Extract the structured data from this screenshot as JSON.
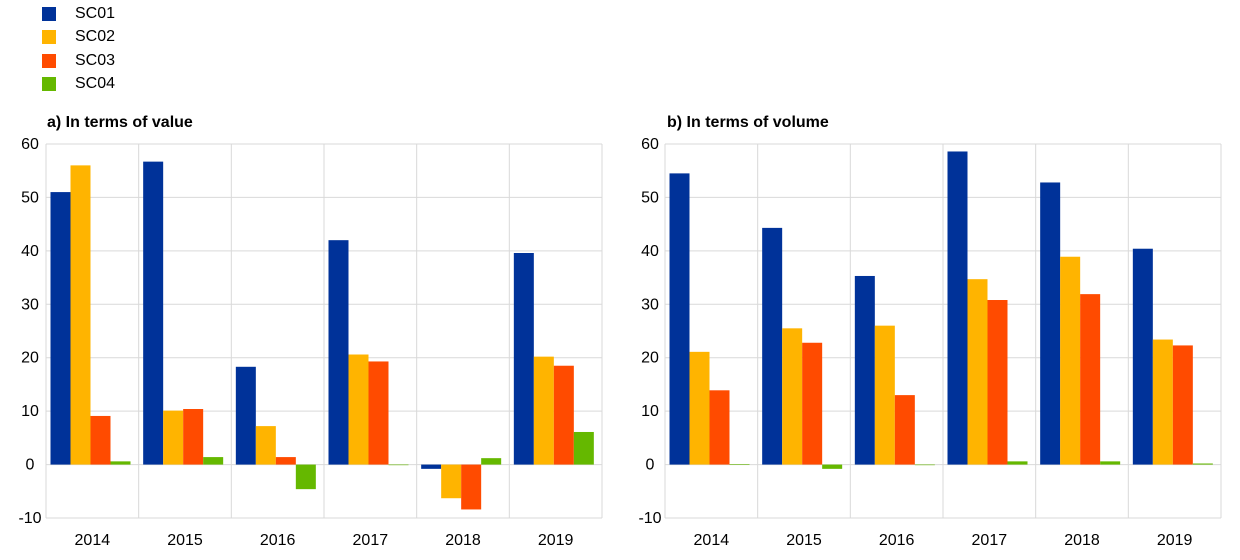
{
  "legend": [
    {
      "name": "SC01",
      "color": "#003299"
    },
    {
      "name": "SC02",
      "color": "#ffb400"
    },
    {
      "name": "SC03",
      "color": "#ff4b00"
    },
    {
      "name": "SC04",
      "color": "#65b800"
    }
  ],
  "chart_data": [
    {
      "type": "bar",
      "title": "a) In terms of value",
      "categories": [
        "2014",
        "2015",
        "2016",
        "2017",
        "2018",
        "2019"
      ],
      "ylim": [
        -10,
        60
      ],
      "yticks": [
        "60",
        "50",
        "40",
        "30",
        "20",
        "10",
        "0",
        "-10"
      ],
      "grid": true,
      "legend_position": "top-left",
      "series": [
        {
          "name": "SC01",
          "color": "#003299",
          "values": [
            51.0,
            56.7,
            18.3,
            42.0,
            -0.8,
            39.6
          ]
        },
        {
          "name": "SC02",
          "color": "#ffb400",
          "values": [
            56.0,
            10.1,
            7.2,
            20.6,
            -6.3,
            20.2
          ]
        },
        {
          "name": "SC03",
          "color": "#ff4b00",
          "values": [
            9.1,
            10.4,
            1.4,
            19.3,
            -8.4,
            18.5
          ]
        },
        {
          "name": "SC04",
          "color": "#65b800",
          "values": [
            0.6,
            1.4,
            -4.6,
            0.0,
            1.2,
            6.1
          ]
        }
      ]
    },
    {
      "type": "bar",
      "title": "b) In terms of volume",
      "categories": [
        "2014",
        "2015",
        "2016",
        "2017",
        "2018",
        "2019"
      ],
      "ylim": [
        -10,
        60
      ],
      "yticks": [
        "60",
        "50",
        "40",
        "30",
        "20",
        "10",
        "0",
        "-10"
      ],
      "grid": true,
      "legend_position": "top-left",
      "series": [
        {
          "name": "SC01",
          "color": "#003299",
          "values": [
            54.5,
            44.3,
            35.3,
            58.6,
            52.8,
            40.4
          ]
        },
        {
          "name": "SC02",
          "color": "#ffb400",
          "values": [
            21.1,
            25.5,
            26.0,
            34.7,
            38.9,
            23.4
          ]
        },
        {
          "name": "SC03",
          "color": "#ff4b00",
          "values": [
            13.9,
            22.8,
            13.0,
            30.8,
            31.9,
            22.3
          ]
        },
        {
          "name": "SC04",
          "color": "#65b800",
          "values": [
            0.1,
            -0.8,
            0.0,
            0.6,
            0.6,
            0.2
          ]
        }
      ]
    }
  ]
}
